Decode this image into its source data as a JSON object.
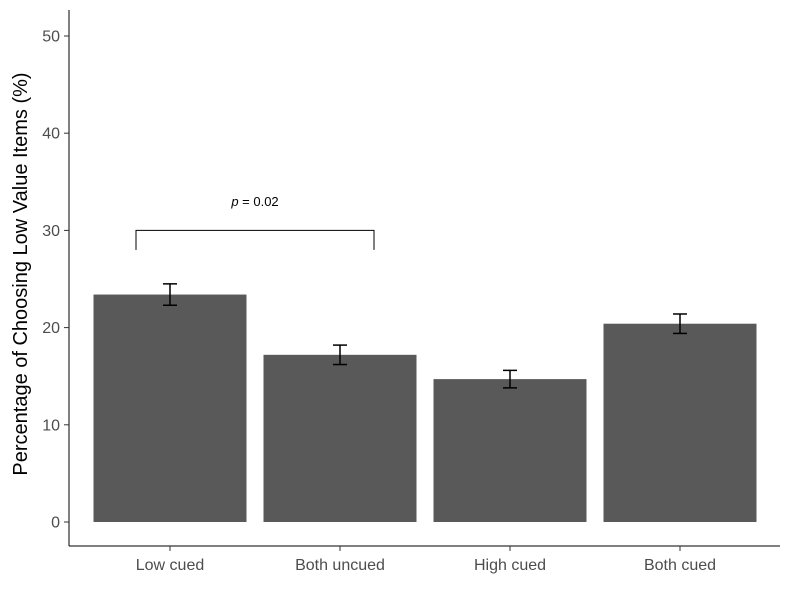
{
  "chart_data": {
    "type": "bar",
    "title": "",
    "xlabel": "",
    "ylabel": "Percentage of Choosing Low Value Items (%)",
    "ylim": [
      0,
      52.5
    ],
    "yticks": [
      0,
      10,
      20,
      30,
      40,
      50
    ],
    "grid": false,
    "categories": [
      "Low cued",
      "Both uncued",
      "High cued",
      "Both cued"
    ],
    "values": [
      23.4,
      17.2,
      14.7,
      20.4
    ],
    "errors": [
      1.1,
      1.0,
      0.9,
      1.0
    ],
    "bar_color": "#595959",
    "annotations": [
      {
        "type": "bracket",
        "from_category": "Low cued",
        "to_category": "Both uncued",
        "y": 30,
        "drop": 2,
        "label_italic": "p",
        "label_rest": " = 0.02",
        "label_y": 33
      }
    ]
  }
}
